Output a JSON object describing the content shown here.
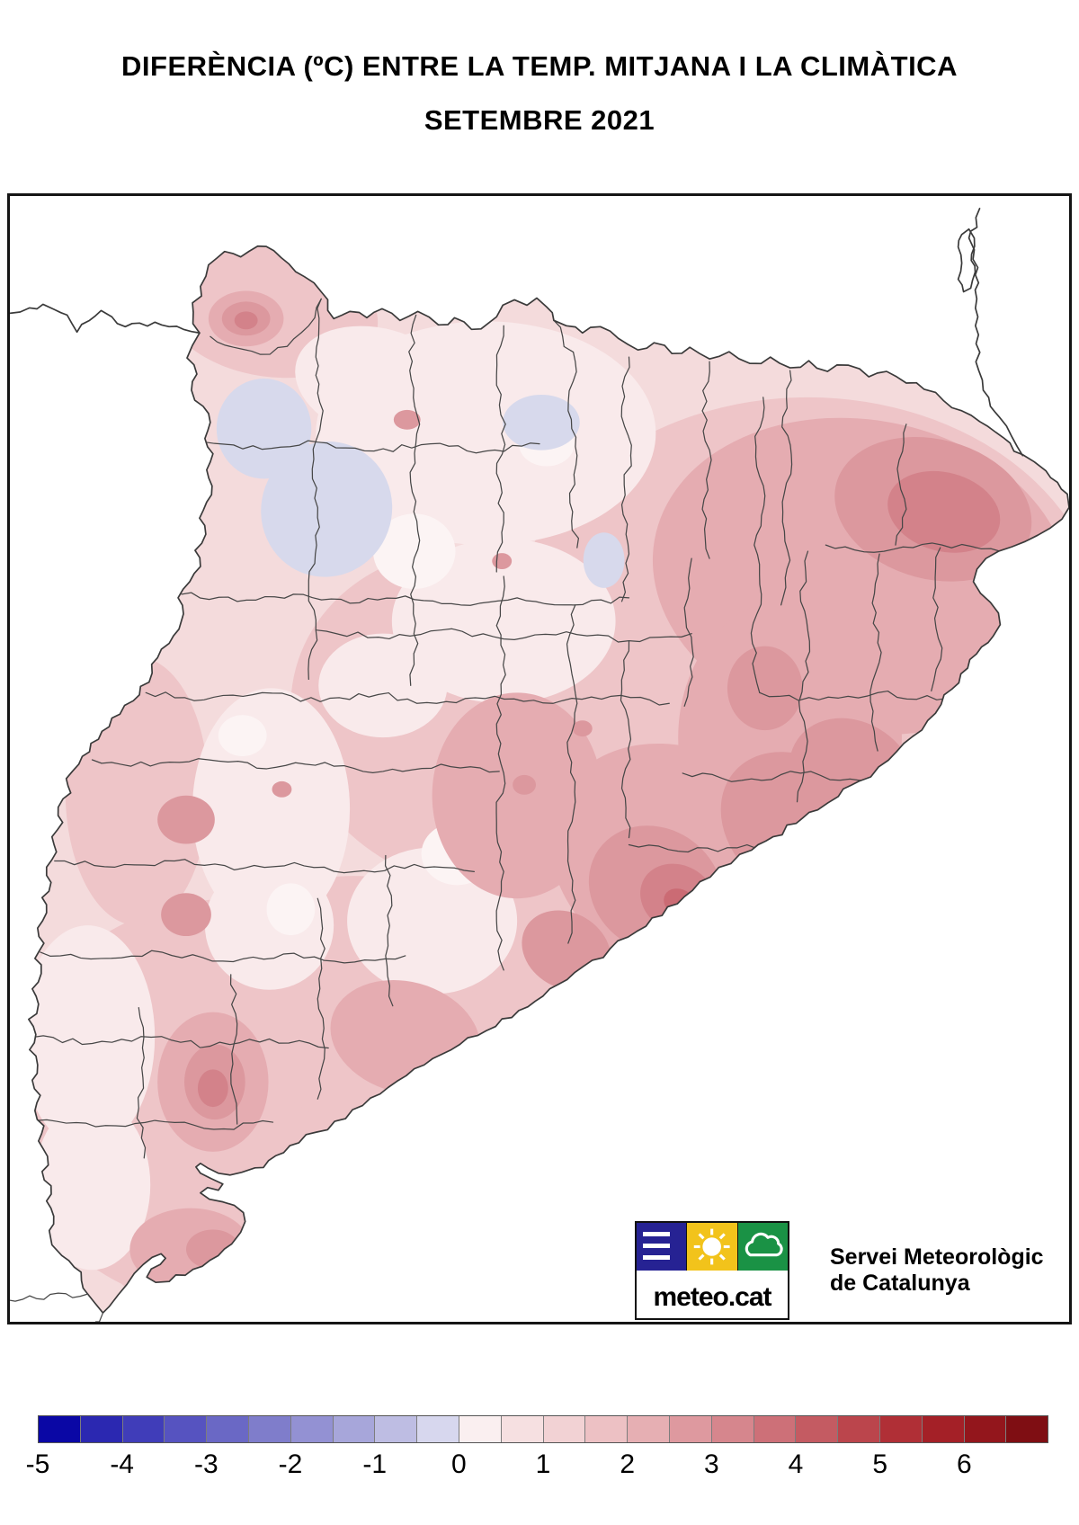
{
  "header": {
    "title_line1": "DIFERÈNCIA (ºC) ENTRE LA TEMP. MITJANA I LA CLIMÀTICA",
    "title_line2": "SETEMBRE 2021"
  },
  "logo": {
    "brand": "meteo.cat",
    "org_line1": "Servei Meteorològic",
    "org_line2": "de Catalunya",
    "colors": {
      "navy": "#262293",
      "yellow": "#F2C31B",
      "green": "#1A9245"
    }
  },
  "map": {
    "palette": {
      "base": "#F4DBDC",
      "light": "#F9EAEB",
      "white": "#FCF4F4",
      "blue": "#D7D9EC",
      "med": "#EEC5C8",
      "deep": "#E5ACB1",
      "rose": "#DC989E",
      "dark": "#D3828A",
      "core": "#CB6B74"
    },
    "border_color": "#3a3a3a"
  },
  "colorbar": {
    "min": -5,
    "max": 7,
    "step": 0.5,
    "tick_labels": [
      "-5",
      "-4",
      "-3",
      "-2",
      "-1",
      "0",
      "1",
      "2",
      "3",
      "4",
      "5",
      "6"
    ],
    "cells": [
      "#0a07a5",
      "#2b28b1",
      "#403db9",
      "#5653c0",
      "#6a68c5",
      "#7f7dcb",
      "#9391d3",
      "#a7a6da",
      "#bebde3",
      "#d7d7ee",
      "#faeff0",
      "#f6e0e1",
      "#f2d2d4",
      "#edc1c4",
      "#e6afb3",
      "#de999f",
      "#d6868d",
      "#cd7078",
      "#c45b62",
      "#bb454c",
      "#b02f36",
      "#a42027",
      "#93161c",
      "#7f0e13"
    ]
  }
}
